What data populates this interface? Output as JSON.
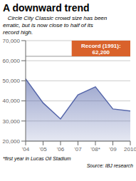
{
  "chart_data": {
    "type": "area",
    "title": "A downward trend",
    "subtitle": "   Circle City Classic crowd size has been\nerratic, but is now close to half of its\nrecord high.",
    "footer": "*first year in Lucas Oil Stadium",
    "source": "Source: IBJ research",
    "categories": [
      "'04",
      "'05",
      "'06",
      "'07",
      "'08*",
      "'09",
      "2010"
    ],
    "values": [
      51000,
      39000,
      31000,
      43000,
      47000,
      36000,
      35000
    ],
    "color": "#5566aa",
    "ylim": [
      20000,
      70000
    ],
    "yticks": [
      {
        "value": 20000,
        "label": "20,000"
      },
      {
        "value": 30000,
        "label": "30,000"
      },
      {
        "value": 40000,
        "label": "40,000"
      },
      {
        "value": 50000,
        "label": "50,000"
      },
      {
        "value": 60000,
        "label": "60,000"
      },
      {
        "value": 70000,
        "label": "70,000"
      }
    ],
    "grid": true,
    "annotations": [
      {
        "label": "Record (1991):\n62,200",
        "y": 62200,
        "color": "#d9622b",
        "line_color": "#999999"
      }
    ]
  }
}
